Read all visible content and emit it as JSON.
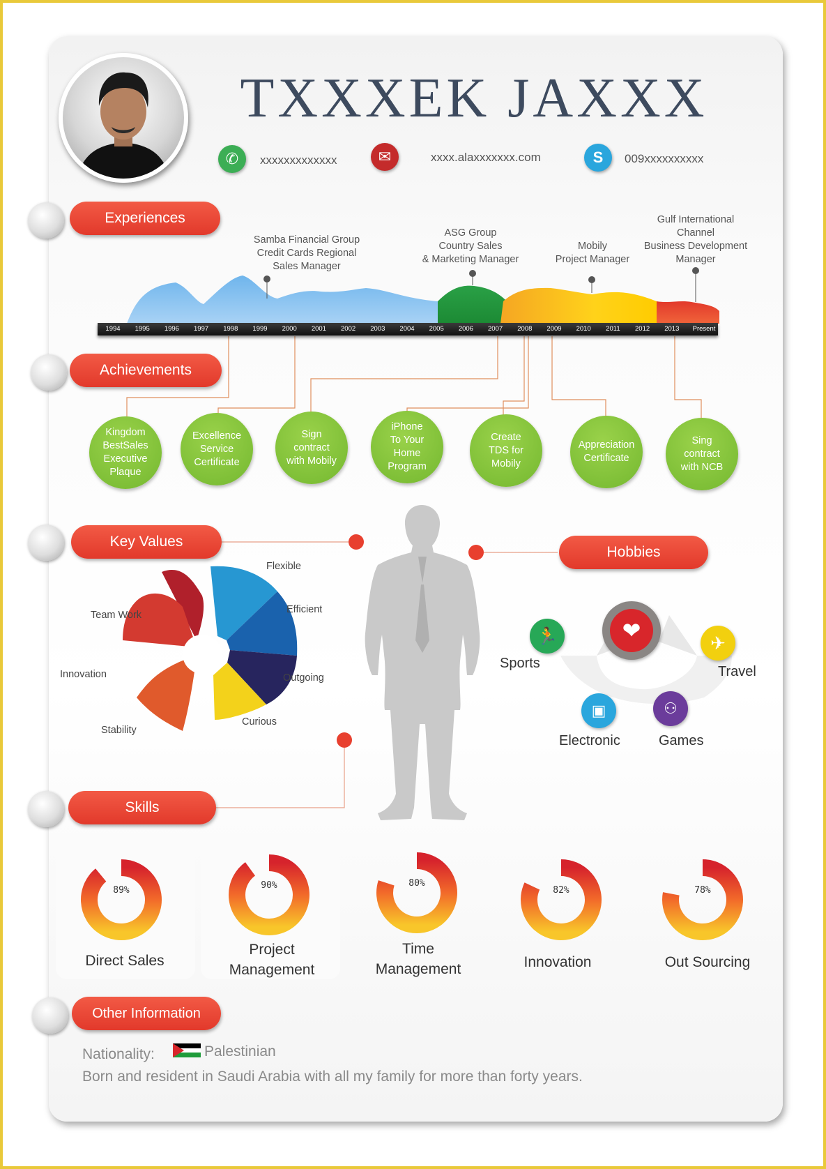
{
  "header": {
    "name": "TXXXEK JAXXX",
    "phone": "xxxxxxxxxxxxx",
    "email": "xxxx.alaxxxxxxx.com",
    "skype": "009xxxxxxxxxx"
  },
  "sections": {
    "experiences": "Experiences",
    "achievements": "Achievements",
    "key_values": "Key Values",
    "hobbies": "Hobbies",
    "skills": "Skills",
    "other_information": "Other Information"
  },
  "experiences": [
    {
      "lines": [
        "Samba Financial Group",
        "Credit Cards Regional",
        "Sales Manager"
      ]
    },
    {
      "lines": [
        "ASG Group",
        "Country Sales",
        "& Marketing Manager"
      ]
    },
    {
      "lines": [
        "Mobily",
        "Project Manager"
      ]
    },
    {
      "lines": [
        "Gulf International",
        "Channel",
        "Business Development",
        "Manager"
      ]
    }
  ],
  "timeline_years": [
    "1994",
    "1995",
    "1996",
    "1997",
    "1998",
    "1999",
    "2000",
    "2001",
    "2002",
    "2003",
    "2004",
    "2005",
    "2006",
    "2007",
    "2008",
    "2009",
    "2010",
    "2011",
    "2012",
    "2013",
    "Present"
  ],
  "achievements": [
    {
      "lines": [
        "Kingdom",
        "BestSales",
        "Executive",
        "Plaque"
      ]
    },
    {
      "lines": [
        "Excellence",
        "Service",
        "Certificate"
      ]
    },
    {
      "lines": [
        "Sign",
        "contract",
        "with Mobily"
      ]
    },
    {
      "lines": [
        "iPhone",
        "To Your",
        "Home",
        "Program"
      ]
    },
    {
      "lines": [
        "Create",
        "TDS for",
        "Mobily"
      ]
    },
    {
      "lines": [
        "Appreciation",
        "Certificate"
      ]
    },
    {
      "lines": [
        "Sing",
        "contract",
        "with NCB"
      ]
    }
  ],
  "key_values": [
    "Flexible",
    "Efficient",
    "Outgoing",
    "Curious",
    "Team Work",
    "Innovation",
    "Stability"
  ],
  "hobbies": [
    "Sports",
    "Travel",
    "Electronic",
    "Games"
  ],
  "skills": [
    {
      "name": "Direct Sales",
      "percent": 89,
      "percent_text": "89%"
    },
    {
      "name": "Project Management",
      "percent": 90,
      "percent_text": "90%"
    },
    {
      "name": "Time Management",
      "percent": 80,
      "percent_text": "80%"
    },
    {
      "name": "Innovation",
      "percent": 82,
      "percent_text": "82%"
    },
    {
      "name": "Out Sourcing",
      "percent": 78,
      "percent_text": "78%"
    }
  ],
  "other": {
    "nationality_label": "Nationality:",
    "nationality_value": "Palestinian",
    "bio": "Born and resident in Saudi Arabia with all my family for more than forty years."
  },
  "colors": {
    "accent_red": "#e2392b",
    "achievement_green": "#7cbf34",
    "title_navy": "#3d4a5e"
  }
}
